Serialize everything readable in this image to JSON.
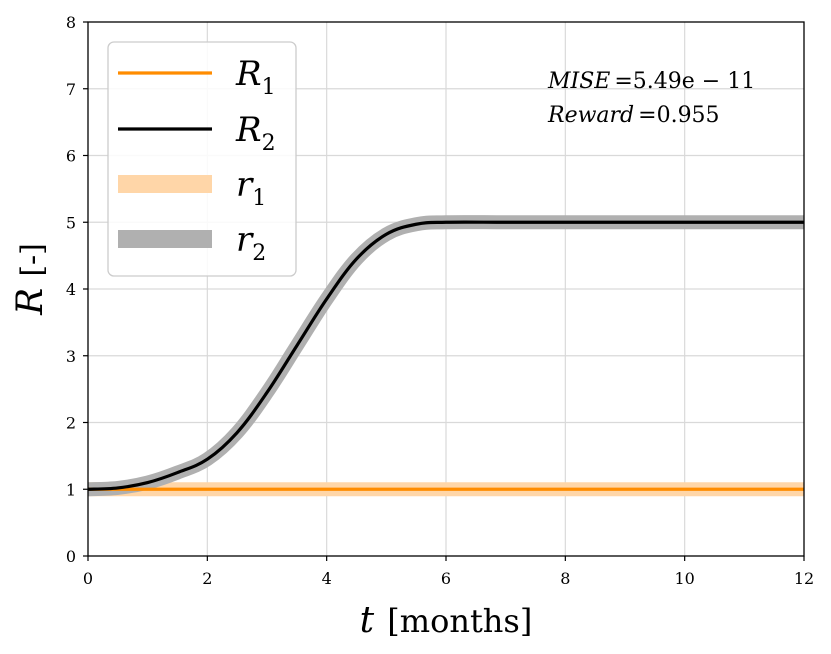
{
  "chart_data": {
    "type": "line",
    "xlabel": {
      "var": "t",
      "unit": "[months]"
    },
    "ylabel": {
      "var": "R",
      "unit": "[-]"
    },
    "xlim": [
      0,
      12
    ],
    "ylim": [
      0,
      8
    ],
    "xticks": [
      0,
      2,
      4,
      6,
      8,
      10,
      12
    ],
    "yticks": [
      0,
      1,
      2,
      3,
      4,
      5,
      6,
      7,
      8
    ],
    "grid": true,
    "legend_position": "top-left",
    "series": [
      {
        "name": "R",
        "sub": "1",
        "role": "reference",
        "color": "#ffd6a8",
        "x": [
          0,
          12
        ],
        "y": [
          1,
          1
        ]
      },
      {
        "name": "R",
        "sub": "2",
        "role": "reference",
        "color": "#b0b0b0",
        "x": [
          0,
          0.5,
          1,
          1.5,
          2,
          2.5,
          3,
          3.5,
          4,
          4.5,
          5,
          5.5,
          6,
          7,
          8,
          9,
          10,
          11,
          12
        ],
        "y": [
          1,
          1.02,
          1.1,
          1.25,
          1.45,
          1.85,
          2.45,
          3.15,
          3.85,
          4.45,
          4.82,
          4.97,
          5,
          5,
          5,
          5,
          5,
          5,
          5
        ]
      },
      {
        "name": "r",
        "sub": "1",
        "role": "actual",
        "color": "#ff8c00",
        "x": [
          0,
          12
        ],
        "y": [
          1,
          1
        ]
      },
      {
        "name": "r",
        "sub": "2",
        "role": "actual",
        "color": "#000000",
        "x": [
          0,
          0.5,
          1,
          1.5,
          2,
          2.5,
          3,
          3.5,
          4,
          4.5,
          5,
          5.5,
          6,
          7,
          8,
          9,
          10,
          11,
          12
        ],
        "y": [
          1,
          1.02,
          1.1,
          1.25,
          1.45,
          1.85,
          2.45,
          3.15,
          3.85,
          4.45,
          4.82,
          4.97,
          5,
          5,
          5,
          5,
          5,
          5,
          5
        ]
      }
    ],
    "legend": [
      {
        "name": "R",
        "sub": "1",
        "color": "#ff8c00",
        "style": "thin"
      },
      {
        "name": "R",
        "sub": "2",
        "color": "#000000",
        "style": "thin"
      },
      {
        "name": "r",
        "sub": "1",
        "color": "#ffd6a8",
        "style": "thick"
      },
      {
        "name": "r",
        "sub": "2",
        "color": "#b0b0b0",
        "style": "thick"
      }
    ],
    "annotations": [
      {
        "label": "MISE",
        "value": "=5.49e − 11"
      },
      {
        "label": "Reward",
        "value": "=0.955"
      }
    ]
  }
}
